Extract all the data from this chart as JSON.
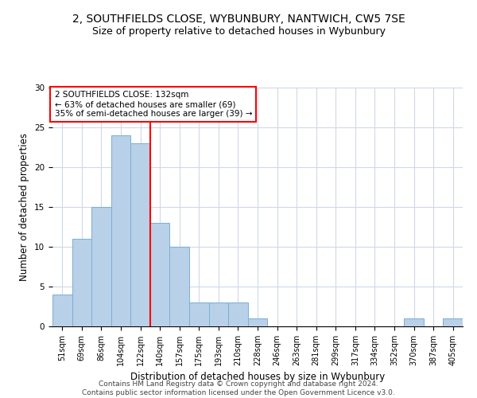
{
  "title": "2, SOUTHFIELDS CLOSE, WYBUNBURY, NANTWICH, CW5 7SE",
  "subtitle": "Size of property relative to detached houses in Wybunbury",
  "xlabel": "Distribution of detached houses by size in Wybunbury",
  "ylabel": "Number of detached properties",
  "bin_labels": [
    "51sqm",
    "69sqm",
    "86sqm",
    "104sqm",
    "122sqm",
    "140sqm",
    "157sqm",
    "175sqm",
    "193sqm",
    "210sqm",
    "228sqm",
    "246sqm",
    "263sqm",
    "281sqm",
    "299sqm",
    "317sqm",
    "334sqm",
    "352sqm",
    "370sqm",
    "387sqm",
    "405sqm"
  ],
  "bar_heights": [
    4,
    11,
    15,
    24,
    23,
    13,
    10,
    3,
    3,
    3,
    1,
    0,
    0,
    0,
    0,
    0,
    0,
    0,
    1,
    0,
    1
  ],
  "bar_color": "#b8d0e8",
  "bar_edge_color": "#7aafd4",
  "vline_index": 4.5,
  "annotation_text": "2 SOUTHFIELDS CLOSE: 132sqm\n← 63% of detached houses are smaller (69)\n35% of semi-detached houses are larger (39) →",
  "annotation_box_color": "white",
  "annotation_box_edge_color": "red",
  "vline_color": "red",
  "ylim": [
    0,
    30
  ],
  "yticks": [
    0,
    5,
    10,
    15,
    20,
    25,
    30
  ],
  "grid_color": "#d0d8e8",
  "background_color": "white",
  "footer_line1": "Contains HM Land Registry data © Crown copyright and database right 2024.",
  "footer_line2": "Contains public sector information licensed under the Open Government Licence v3.0.",
  "title_fontsize": 10,
  "subtitle_fontsize": 9,
  "ylabel_fontsize": 8.5,
  "xlabel_fontsize": 8.5,
  "tick_fontsize": 7,
  "annotation_fontsize": 7.5,
  "footer_fontsize": 6.5
}
